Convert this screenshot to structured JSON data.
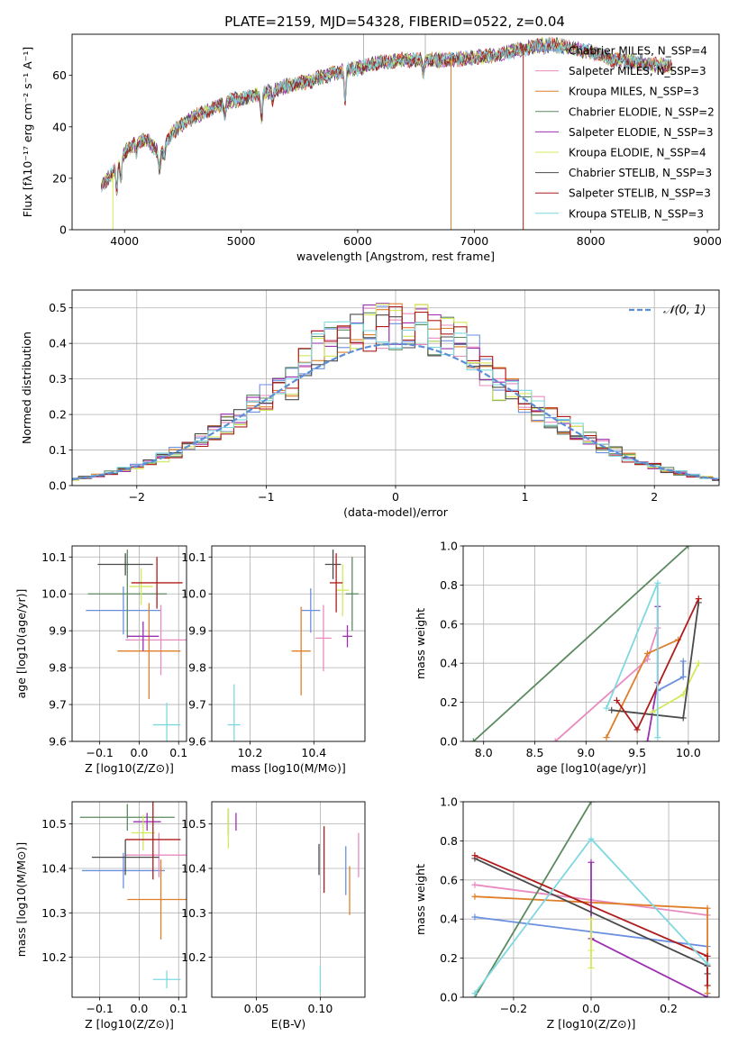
{
  "title": "PLATE=2159, MJD=54328, FIBERID=0522, z=0.04",
  "colors": {
    "Chabrier MILES": "#6b8fe0",
    "Salpeter MILES": "#e88bbf",
    "Kroupa MILES": "#df7f2a",
    "Chabrier ELODIE": "#5c8a60",
    "Salpeter ELODIE": "#9b30b0",
    "Kroupa ELODIE": "#d3e85a",
    "Chabrier STELIB": "#4a4a4a",
    "Salpeter STELIB": "#b01c1c",
    "Kroupa STELIB": "#7fd8e0"
  },
  "chart_data": [
    {
      "id": "spectrum",
      "type": "line",
      "xlabel": "wavelength [Angstrom, rest frame]",
      "ylabel": "Flux [fλ10⁻¹⁷ erg cm⁻² s⁻¹ A⁻¹]",
      "xlim": [
        3550,
        9100
      ],
      "ylim": [
        0,
        76
      ],
      "xticks": [
        4000,
        5000,
        6000,
        7000,
        8000,
        9000
      ],
      "yticks": [
        0,
        20,
        40,
        60
      ],
      "grid": false,
      "legend_position": "top-right",
      "legend": [
        "Chabrier MILES, N_SSP=4",
        "Salpeter MILES, N_SSP=3",
        "Kroupa MILES, N_SSP=3",
        "Chabrier ELODIE, N_SSP=2",
        "Salpeter ELODIE, N_SSP=3",
        "Kroupa ELODIE, N_SSP=4",
        "Chabrier STELIB, N_SSP=3",
        "Salpeter STELIB, N_SSP=3",
        "Kroupa STELIB, N_SSP=3"
      ],
      "continuum": {
        "x": [
          3800,
          3900,
          4000,
          4100,
          4200,
          4300,
          4400,
          4500,
          4600,
          4700,
          4800,
          4900,
          5000,
          5100,
          5200,
          5400,
          5600,
          5800,
          6000,
          6200,
          6400,
          6600,
          6800,
          7000,
          7200,
          7400,
          7600,
          7800,
          8000,
          8200,
          8400,
          8600,
          8700
        ],
        "y": [
          17,
          22,
          30,
          34,
          35,
          29,
          37,
          41,
          44,
          46,
          48,
          50,
          51,
          52,
          53,
          56,
          58,
          61,
          63,
          65,
          66,
          66,
          66,
          67,
          68,
          70,
          72,
          71,
          69,
          66,
          65,
          64,
          63
        ]
      }
    },
    {
      "id": "residuals",
      "type": "step-histogram",
      "xlabel": "(data-model)/error",
      "ylabel": "Normed distribution",
      "xlim": [
        -2.5,
        2.5
      ],
      "ylim": [
        0,
        0.55
      ],
      "xticks": [
        -2,
        -1,
        0,
        1,
        2
      ],
      "yticks": [
        0.0,
        0.1,
        0.2,
        0.3,
        0.4,
        0.5
      ],
      "grid": true,
      "legend": [
        "𝒩(0, 1)"
      ],
      "legend_position": "top-right",
      "bin_width": 0.1
    },
    {
      "id": "age-vs-Z",
      "type": "errorbar",
      "xlabel": "Z [log10(Z/Z⊙)]",
      "ylabel": "age [log10(age/yr)]",
      "xlim": [
        -0.17,
        0.12
      ],
      "ylim": [
        9.6,
        10.13
      ],
      "xticks": [
        -0.1,
        0.0,
        0.1
      ],
      "yticks": [
        9.6,
        9.7,
        9.8,
        9.9,
        10.0,
        10.1
      ],
      "grid": true,
      "points": [
        {
          "model": "Chabrier MILES",
          "x": -0.04,
          "y": 9.955,
          "xerr": 0.095,
          "yerr": 0.065
        },
        {
          "model": "Salpeter MILES",
          "x": 0.055,
          "y": 9.875,
          "xerr": 0.09,
          "yerr": 0.095
        },
        {
          "model": "Kroupa MILES",
          "x": 0.025,
          "y": 9.845,
          "xerr": 0.08,
          "yerr": 0.13
        },
        {
          "model": "Chabrier ELODIE",
          "x": -0.03,
          "y": 10.0,
          "xerr": 0.1,
          "yerr": 0.12
        },
        {
          "model": "Salpeter ELODIE",
          "x": 0.01,
          "y": 9.885,
          "xerr": 0.04,
          "yerr": 0.04
        },
        {
          "model": "Kroupa ELODIE",
          "x": 0.005,
          "y": 10.02,
          "xerr": 0.03,
          "yerr": 0.05
        },
        {
          "model": "Chabrier STELIB",
          "x": -0.035,
          "y": 10.08,
          "xerr": 0.07,
          "yerr": 0.03
        },
        {
          "model": "Salpeter STELIB",
          "x": 0.045,
          "y": 10.03,
          "xerr": 0.065,
          "yerr": 0.07
        },
        {
          "model": "Kroupa STELIB",
          "x": 0.07,
          "y": 9.645,
          "xerr": 0.035,
          "yerr": 0.06
        }
      ]
    },
    {
      "id": "age-vs-mass",
      "type": "errorbar",
      "xlabel": "mass [log10(M/M⊙)]",
      "ylabel": "",
      "xlim": [
        10.08,
        10.56
      ],
      "ylim": [
        9.6,
        10.13
      ],
      "xticks": [
        10.2,
        10.4
      ],
      "yticks": [
        9.6,
        9.7,
        9.8,
        9.9,
        10.0,
        10.1
      ],
      "grid": true,
      "points": [
        {
          "model": "Chabrier MILES",
          "x": 10.39,
          "y": 9.955,
          "xerr": 0.03,
          "yerr": 0.06
        },
        {
          "model": "Salpeter MILES",
          "x": 10.43,
          "y": 9.88,
          "xerr": 0.025,
          "yerr": 0.09
        },
        {
          "model": "Kroupa MILES",
          "x": 10.36,
          "y": 9.845,
          "xerr": 0.03,
          "yerr": 0.12
        },
        {
          "model": "Chabrier ELODIE",
          "x": 10.52,
          "y": 10.0,
          "xerr": 0.02,
          "yerr": 0.1
        },
        {
          "model": "Salpeter ELODIE",
          "x": 10.505,
          "y": 9.885,
          "xerr": 0.015,
          "yerr": 0.03
        },
        {
          "model": "Kroupa ELODIE",
          "x": 10.49,
          "y": 10.01,
          "xerr": 0.02,
          "yerr": 0.07
        },
        {
          "model": "Chabrier STELIB",
          "x": 10.46,
          "y": 10.08,
          "xerr": 0.025,
          "yerr": 0.04
        },
        {
          "model": "Salpeter STELIB",
          "x": 10.47,
          "y": 10.03,
          "xerr": 0.02,
          "yerr": 0.08
        },
        {
          "model": "Kroupa STELIB",
          "x": 10.15,
          "y": 9.645,
          "xerr": 0.02,
          "yerr": 0.11
        }
      ]
    },
    {
      "id": "weight-vs-age",
      "type": "line",
      "xlabel": "age [log10(age/yr)]",
      "ylabel": "mass weight",
      "xlim": [
        7.8,
        10.3
      ],
      "ylim": [
        0.0,
        1.0
      ],
      "xticks": [
        8.0,
        8.5,
        9.0,
        9.5,
        10.0
      ],
      "yticks": [
        0.0,
        0.2,
        0.4,
        0.6,
        0.8,
        1.0
      ],
      "grid": true,
      "series": [
        {
          "model": "Chabrier MILES",
          "x": [
            9.7,
            9.95,
            9.95
          ],
          "y": [
            0.26,
            0.33,
            0.41
          ]
        },
        {
          "model": "Salpeter MILES",
          "x": [
            8.7,
            9.6,
            9.7
          ],
          "y": [
            0.0,
            0.42,
            0.58
          ]
        },
        {
          "model": "Kroupa MILES",
          "x": [
            9.2,
            9.6,
            9.9
          ],
          "y": [
            0.02,
            0.45,
            0.52
          ]
        },
        {
          "model": "Chabrier ELODIE",
          "x": [
            7.9,
            10.0
          ],
          "y": [
            0.0,
            1.0
          ]
        },
        {
          "model": "Salpeter ELODIE",
          "x": [
            9.6,
            9.7,
            9.7
          ],
          "y": [
            0.0,
            0.3,
            0.69
          ]
        },
        {
          "model": "Kroupa ELODIE",
          "x": [
            9.65,
            9.95,
            10.1
          ],
          "y": [
            0.15,
            0.24,
            0.4
          ]
        },
        {
          "model": "Chabrier STELIB",
          "x": [
            9.25,
            9.95,
            10.1
          ],
          "y": [
            0.16,
            0.12,
            0.71
          ]
        },
        {
          "model": "Salpeter STELIB",
          "x": [
            9.3,
            9.5,
            10.1
          ],
          "y": [
            0.21,
            0.06,
            0.73
          ]
        },
        {
          "model": "Kroupa STELIB",
          "x": [
            9.2,
            9.7,
            9.7
          ],
          "y": [
            0.17,
            0.81,
            0.02
          ]
        }
      ]
    },
    {
      "id": "mass-vs-Z",
      "type": "errorbar",
      "xlabel": "Z [log10(Z/Z⊙)]",
      "ylabel": "mass [log10(M/M⊙)]",
      "xlim": [
        -0.17,
        0.12
      ],
      "ylim": [
        10.11,
        10.55
      ],
      "xticks": [
        -0.1,
        0.0,
        0.1
      ],
      "yticks": [
        10.2,
        10.3,
        10.4,
        10.5
      ],
      "grid": true,
      "points": [
        {
          "model": "Chabrier MILES",
          "x": -0.04,
          "y": 10.395,
          "xerr": 0.105,
          "yerr": 0.04
        },
        {
          "model": "Salpeter MILES",
          "x": 0.05,
          "y": 10.43,
          "xerr": 0.085,
          "yerr": 0.05
        },
        {
          "model": "Kroupa MILES",
          "x": 0.055,
          "y": 10.33,
          "xerr": 0.085,
          "yerr": 0.09
        },
        {
          "model": "Chabrier ELODIE",
          "x": -0.03,
          "y": 10.515,
          "xerr": 0.12,
          "yerr": 0.03
        },
        {
          "model": "Salpeter ELODIE",
          "x": 0.02,
          "y": 10.505,
          "xerr": 0.035,
          "yerr": 0.02
        },
        {
          "model": "Kroupa ELODIE",
          "x": 0.01,
          "y": 10.48,
          "xerr": 0.03,
          "yerr": 0.04
        },
        {
          "model": "Chabrier STELIB",
          "x": -0.035,
          "y": 10.425,
          "xerr": 0.085,
          "yerr": 0.04
        },
        {
          "model": "Salpeter STELIB",
          "x": 0.035,
          "y": 10.465,
          "xerr": 0.07,
          "yerr": 0.09
        },
        {
          "model": "Kroupa STELIB",
          "x": 0.07,
          "y": 10.15,
          "xerr": 0.035,
          "yerr": 0.02
        }
      ]
    },
    {
      "id": "mass-vs-ebv",
      "type": "errorbar",
      "xlabel": "E(B-V)",
      "ylabel": "",
      "xlim": [
        0.015,
        0.135
      ],
      "ylim": [
        10.11,
        10.55
      ],
      "xticks": [
        0.05,
        0.1
      ],
      "yticks": [
        10.2,
        10.3,
        10.4,
        10.5
      ],
      "grid": true,
      "points": [
        {
          "model": "Chabrier MILES",
          "x": 0.12,
          "y": 10.395,
          "xerr": 0.0,
          "yerr": 0.055
        },
        {
          "model": "Salpeter MILES",
          "x": 0.13,
          "y": 10.43,
          "xerr": 0.0,
          "yerr": 0.05
        },
        {
          "model": "Kroupa MILES",
          "x": 0.123,
          "y": 10.35,
          "xerr": 0.0,
          "yerr": 0.055
        },
        {
          "model": "Chabrier ELODIE",
          "x": 0.028,
          "y": 10.505,
          "xerr": 0.0,
          "yerr": 0.03
        },
        {
          "model": "Salpeter ELODIE",
          "x": 0.034,
          "y": 10.505,
          "xerr": 0.0,
          "yerr": 0.02
        },
        {
          "model": "Kroupa ELODIE",
          "x": 0.028,
          "y": 10.49,
          "xerr": 0.0,
          "yerr": 0.045
        },
        {
          "model": "Chabrier STELIB",
          "x": 0.099,
          "y": 10.42,
          "xerr": 0.0,
          "yerr": 0.035
        },
        {
          "model": "Salpeter STELIB",
          "x": 0.103,
          "y": 10.42,
          "xerr": 0.0,
          "yerr": 0.075
        },
        {
          "model": "Kroupa STELIB",
          "x": 0.1,
          "y": 10.15,
          "xerr": 0.0,
          "yerr": 0.03
        }
      ]
    },
    {
      "id": "weight-vs-Z",
      "type": "line",
      "xlabel": "Z [log10(Z/Z⊙)]",
      "ylabel": "mass weight",
      "xlim": [
        -0.33,
        0.33
      ],
      "ylim": [
        0.0,
        1.0
      ],
      "xticks": [
        -0.2,
        0.0,
        0.2
      ],
      "yticks": [
        0.0,
        0.2,
        0.4,
        0.6,
        0.8,
        1.0
      ],
      "grid": true,
      "series": [
        {
          "model": "Chabrier MILES",
          "x": [
            -0.3,
            0.3
          ],
          "y": [
            0.41,
            0.26
          ]
        },
        {
          "model": "Salpeter MILES",
          "x": [
            -0.3,
            0.3
          ],
          "y": [
            0.575,
            0.42
          ]
        },
        {
          "model": "Kroupa MILES",
          "x": [
            -0.3,
            0.3,
            0.3
          ],
          "y": [
            0.515,
            0.455,
            0.02
          ]
        },
        {
          "model": "Chabrier ELODIE",
          "x": [
            -0.3,
            0.0
          ],
          "y": [
            0.0,
            1.0
          ]
        },
        {
          "model": "Salpeter ELODIE",
          "x": [
            0.0,
            0.0,
            0.3
          ],
          "y": [
            0.69,
            0.3,
            0.0
          ]
        },
        {
          "model": "Kroupa ELODIE",
          "x": [
            0.0,
            0.0,
            0.0
          ],
          "y": [
            0.4,
            0.24,
            0.15
          ]
        },
        {
          "model": "Chabrier STELIB",
          "x": [
            -0.3,
            0.3,
            0.3
          ],
          "y": [
            0.71,
            0.16,
            0.12
          ]
        },
        {
          "model": "Salpeter STELIB",
          "x": [
            -0.3,
            0.3,
            0.3
          ],
          "y": [
            0.725,
            0.21,
            0.06
          ]
        },
        {
          "model": "Kroupa STELIB",
          "x": [
            -0.3,
            0.0,
            0.3
          ],
          "y": [
            0.02,
            0.81,
            0.17
          ]
        }
      ]
    }
  ]
}
